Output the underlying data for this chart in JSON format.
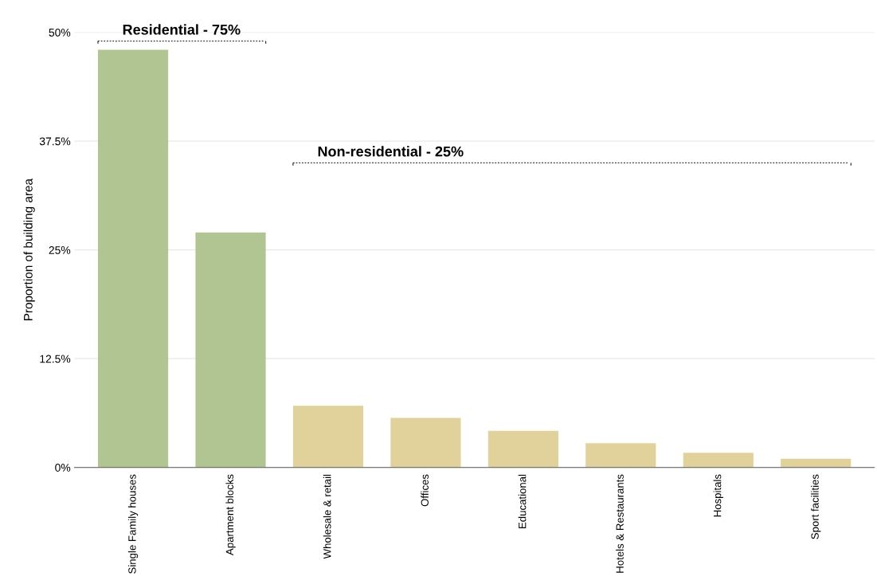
{
  "chart_data": {
    "type": "bar",
    "ylabel": "Proportion of building area",
    "categories": [
      "Single Family houses",
      "Apartment blocks",
      "Wholesale & retail",
      "Offices",
      "Educational",
      "Hotels & Restaurants",
      "Hospitals",
      "Sport facilities"
    ],
    "values": [
      48,
      27,
      7.1,
      5.7,
      4.2,
      2.8,
      1.7,
      1.0
    ],
    "colors": [
      "#b0c592",
      "#b0c592",
      "#e0d29a",
      "#e0d29a",
      "#e0d29a",
      "#e0d29a",
      "#e0d29a",
      "#e0d29a"
    ],
    "ylim": [
      0,
      50
    ],
    "yticks": [
      {
        "value": 0,
        "label": "0%"
      },
      {
        "value": 12.5,
        "label": "12.5%"
      },
      {
        "value": 25,
        "label": "25%"
      },
      {
        "value": 37.5,
        "label": "37.5%"
      },
      {
        "value": 50,
        "label": "50%"
      }
    ],
    "grid": "y",
    "annotations": [
      "Residential - 75%",
      "Non-residential - 25%"
    ]
  }
}
